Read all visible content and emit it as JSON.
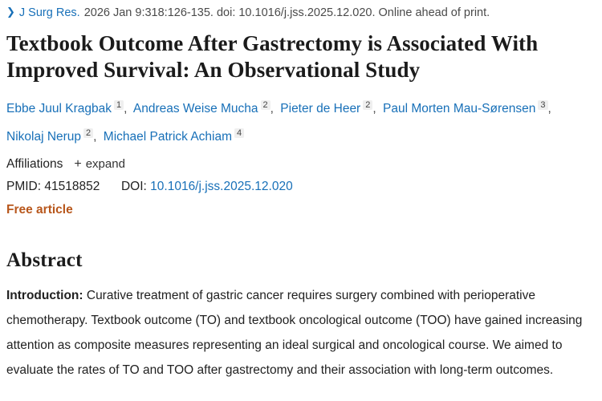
{
  "citation": {
    "journal": "J Surg Res.",
    "details": "2026 Jan 9:318:126-135. doi: 10.1016/j.jss.2025.12.020. Online ahead of print."
  },
  "title": "Textbook Outcome After Gastrectomy is Associated With Improved Survival: An Observational Study",
  "authors": [
    {
      "name": "Ebbe Juul Kragbak",
      "sup": "1"
    },
    {
      "name": "Andreas Weise Mucha",
      "sup": "2"
    },
    {
      "name": "Pieter de Heer",
      "sup": "2"
    },
    {
      "name": "Paul Morten Mau-Sørensen",
      "sup": "3"
    },
    {
      "name": "Nikolaj Nerup",
      "sup": "2"
    },
    {
      "name": "Michael Patrick Achiam",
      "sup": "4"
    }
  ],
  "authors_meta": {
    "separator": ","
  },
  "affiliations": {
    "label": "Affiliations",
    "plus": "+",
    "expand_label": "expand"
  },
  "ids": {
    "pmid_label": "PMID:",
    "pmid_value": "41518852",
    "doi_label": "DOI:",
    "doi_value": "10.1016/j.jss.2025.12.020"
  },
  "free_article_label": "Free article",
  "abstract": {
    "heading": "Abstract",
    "intro_label": "Introduction:",
    "intro_text": " Curative treatment of gastric cancer requires surgery combined with perioperative chemotherapy. Textbook outcome (TO) and textbook oncological outcome (TOO) have gained increasing attention as composite measures representing an ideal surgical and oncological course. We aimed to evaluate the rates of TO and TOO after gastrectomy and their association with long-term outcomes."
  },
  "colors": {
    "link_blue": "#1870b8",
    "free_article_orange": "#b8571c",
    "title_dark": "#1b1b1b",
    "body_gray": "#4a4a4a"
  }
}
